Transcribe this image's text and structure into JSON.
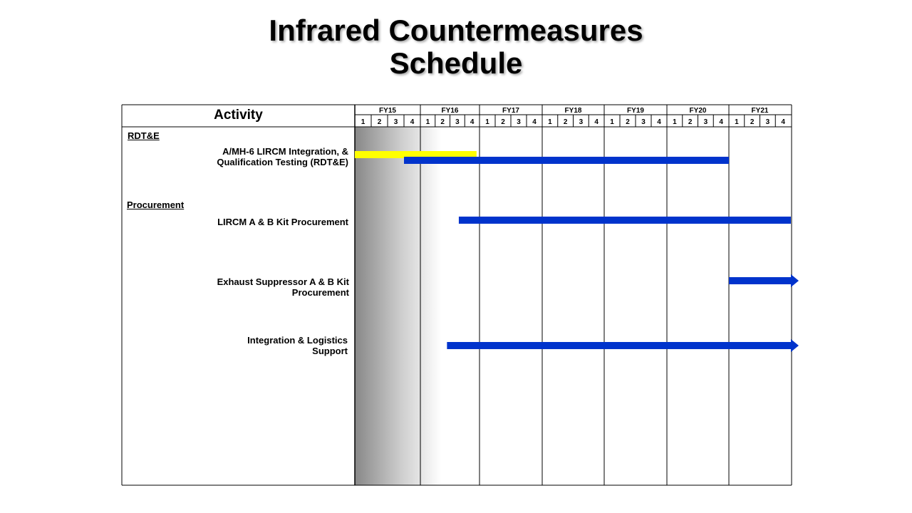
{
  "title_line1": "Infrared Countermeasures",
  "title_line2": "Schedule",
  "activity_header": "Activity",
  "sections": [
    {
      "label": "RDT&E"
    },
    {
      "label": "Procurement"
    }
  ],
  "tasks": [
    {
      "label_line1": "A/MH-6 LIRCM  Integration, &",
      "label_line2": "Qualification Testing (RDT&E)"
    },
    {
      "label_line1": "LIRCM A & B Kit Procurement",
      "label_line2": ""
    },
    {
      "label_line1": "Exhaust Suppressor A & B Kit",
      "label_line2": "Procurement"
    },
    {
      "label_line1": "Integration & Logistics",
      "label_line2": "Support"
    }
  ],
  "colors": {
    "yellow_bar": "#ffff00",
    "blue_bar": "#0033cc",
    "grid": "#000000",
    "shade": "#888888"
  },
  "chart_data": {
    "type": "gantt",
    "title": "Infrared Countermeasures Schedule",
    "fiscal_years": [
      "FY15",
      "FY16",
      "FY17",
      "FY18",
      "FY19",
      "FY20",
      "FY21"
    ],
    "quarters": [
      "1",
      "2",
      "3",
      "4"
    ],
    "shaded_period": {
      "start": 0,
      "end": 1.35
    },
    "bars": [
      {
        "task": 0,
        "color": "yellow",
        "start": 0.0,
        "end": 1.95,
        "arrow": false
      },
      {
        "task": 0,
        "color": "blue",
        "start": 0.75,
        "end": 6.0,
        "arrow": false
      },
      {
        "task": 1,
        "color": "blue",
        "start": 1.65,
        "end": 7.0,
        "arrow": false
      },
      {
        "task": 2,
        "color": "blue",
        "start": 6.0,
        "end": 7.0,
        "arrow": true
      },
      {
        "task": 3,
        "color": "blue",
        "start": 1.45,
        "end": 7.0,
        "arrow": true
      }
    ]
  }
}
